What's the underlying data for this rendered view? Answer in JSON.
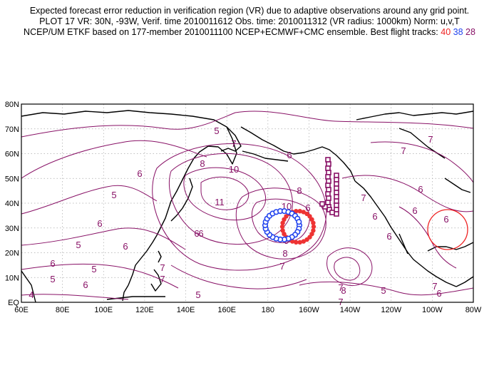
{
  "header": {
    "line1": "Expected forecast error reduction in verification region (VR) due to adaptive observations around any grid point.",
    "line2": "PLOT 17 VR: 30N, -93W, Verif. time 2010011612 Obs. time: 2010011312 (VR radius: 1000km) Norm: u,v,T",
    "line3_prefix": "NCEP/UM ETKF based on 177-member 2010011100 NCEP+ECMWF+CMC ensemble. Best flight tracks:",
    "track_labels": [
      "40",
      "38",
      "28"
    ]
  },
  "colors": {
    "contour": "#881166",
    "track_red": "#ee3333",
    "track_blue": "#2244ee",
    "track_purple": "#881166",
    "verification_circle": "#ee2222"
  },
  "map": {
    "lat_labels": [
      "80N",
      "70N",
      "60N",
      "50N",
      "40N",
      "30N",
      "20N",
      "10N",
      "EQ"
    ],
    "lon_labels": [
      "60E",
      "80E",
      "100E",
      "120E",
      "140E",
      "160E",
      "180",
      "160W",
      "140W",
      "120W",
      "100W",
      "80W"
    ],
    "contour_labels": [
      "5",
      "7",
      "6",
      "6",
      "5",
      "6",
      "5",
      "6",
      "5",
      "5",
      "6",
      "7",
      "4",
      "5",
      "6",
      "8",
      "10",
      "11",
      "6",
      "8",
      "10",
      "9",
      "8",
      "7",
      "7",
      "7",
      "6",
      "7",
      "6",
      "6",
      "7",
      "6",
      "7",
      "6",
      "8",
      "5",
      "7",
      "7",
      "6",
      "6",
      "6"
    ]
  }
}
